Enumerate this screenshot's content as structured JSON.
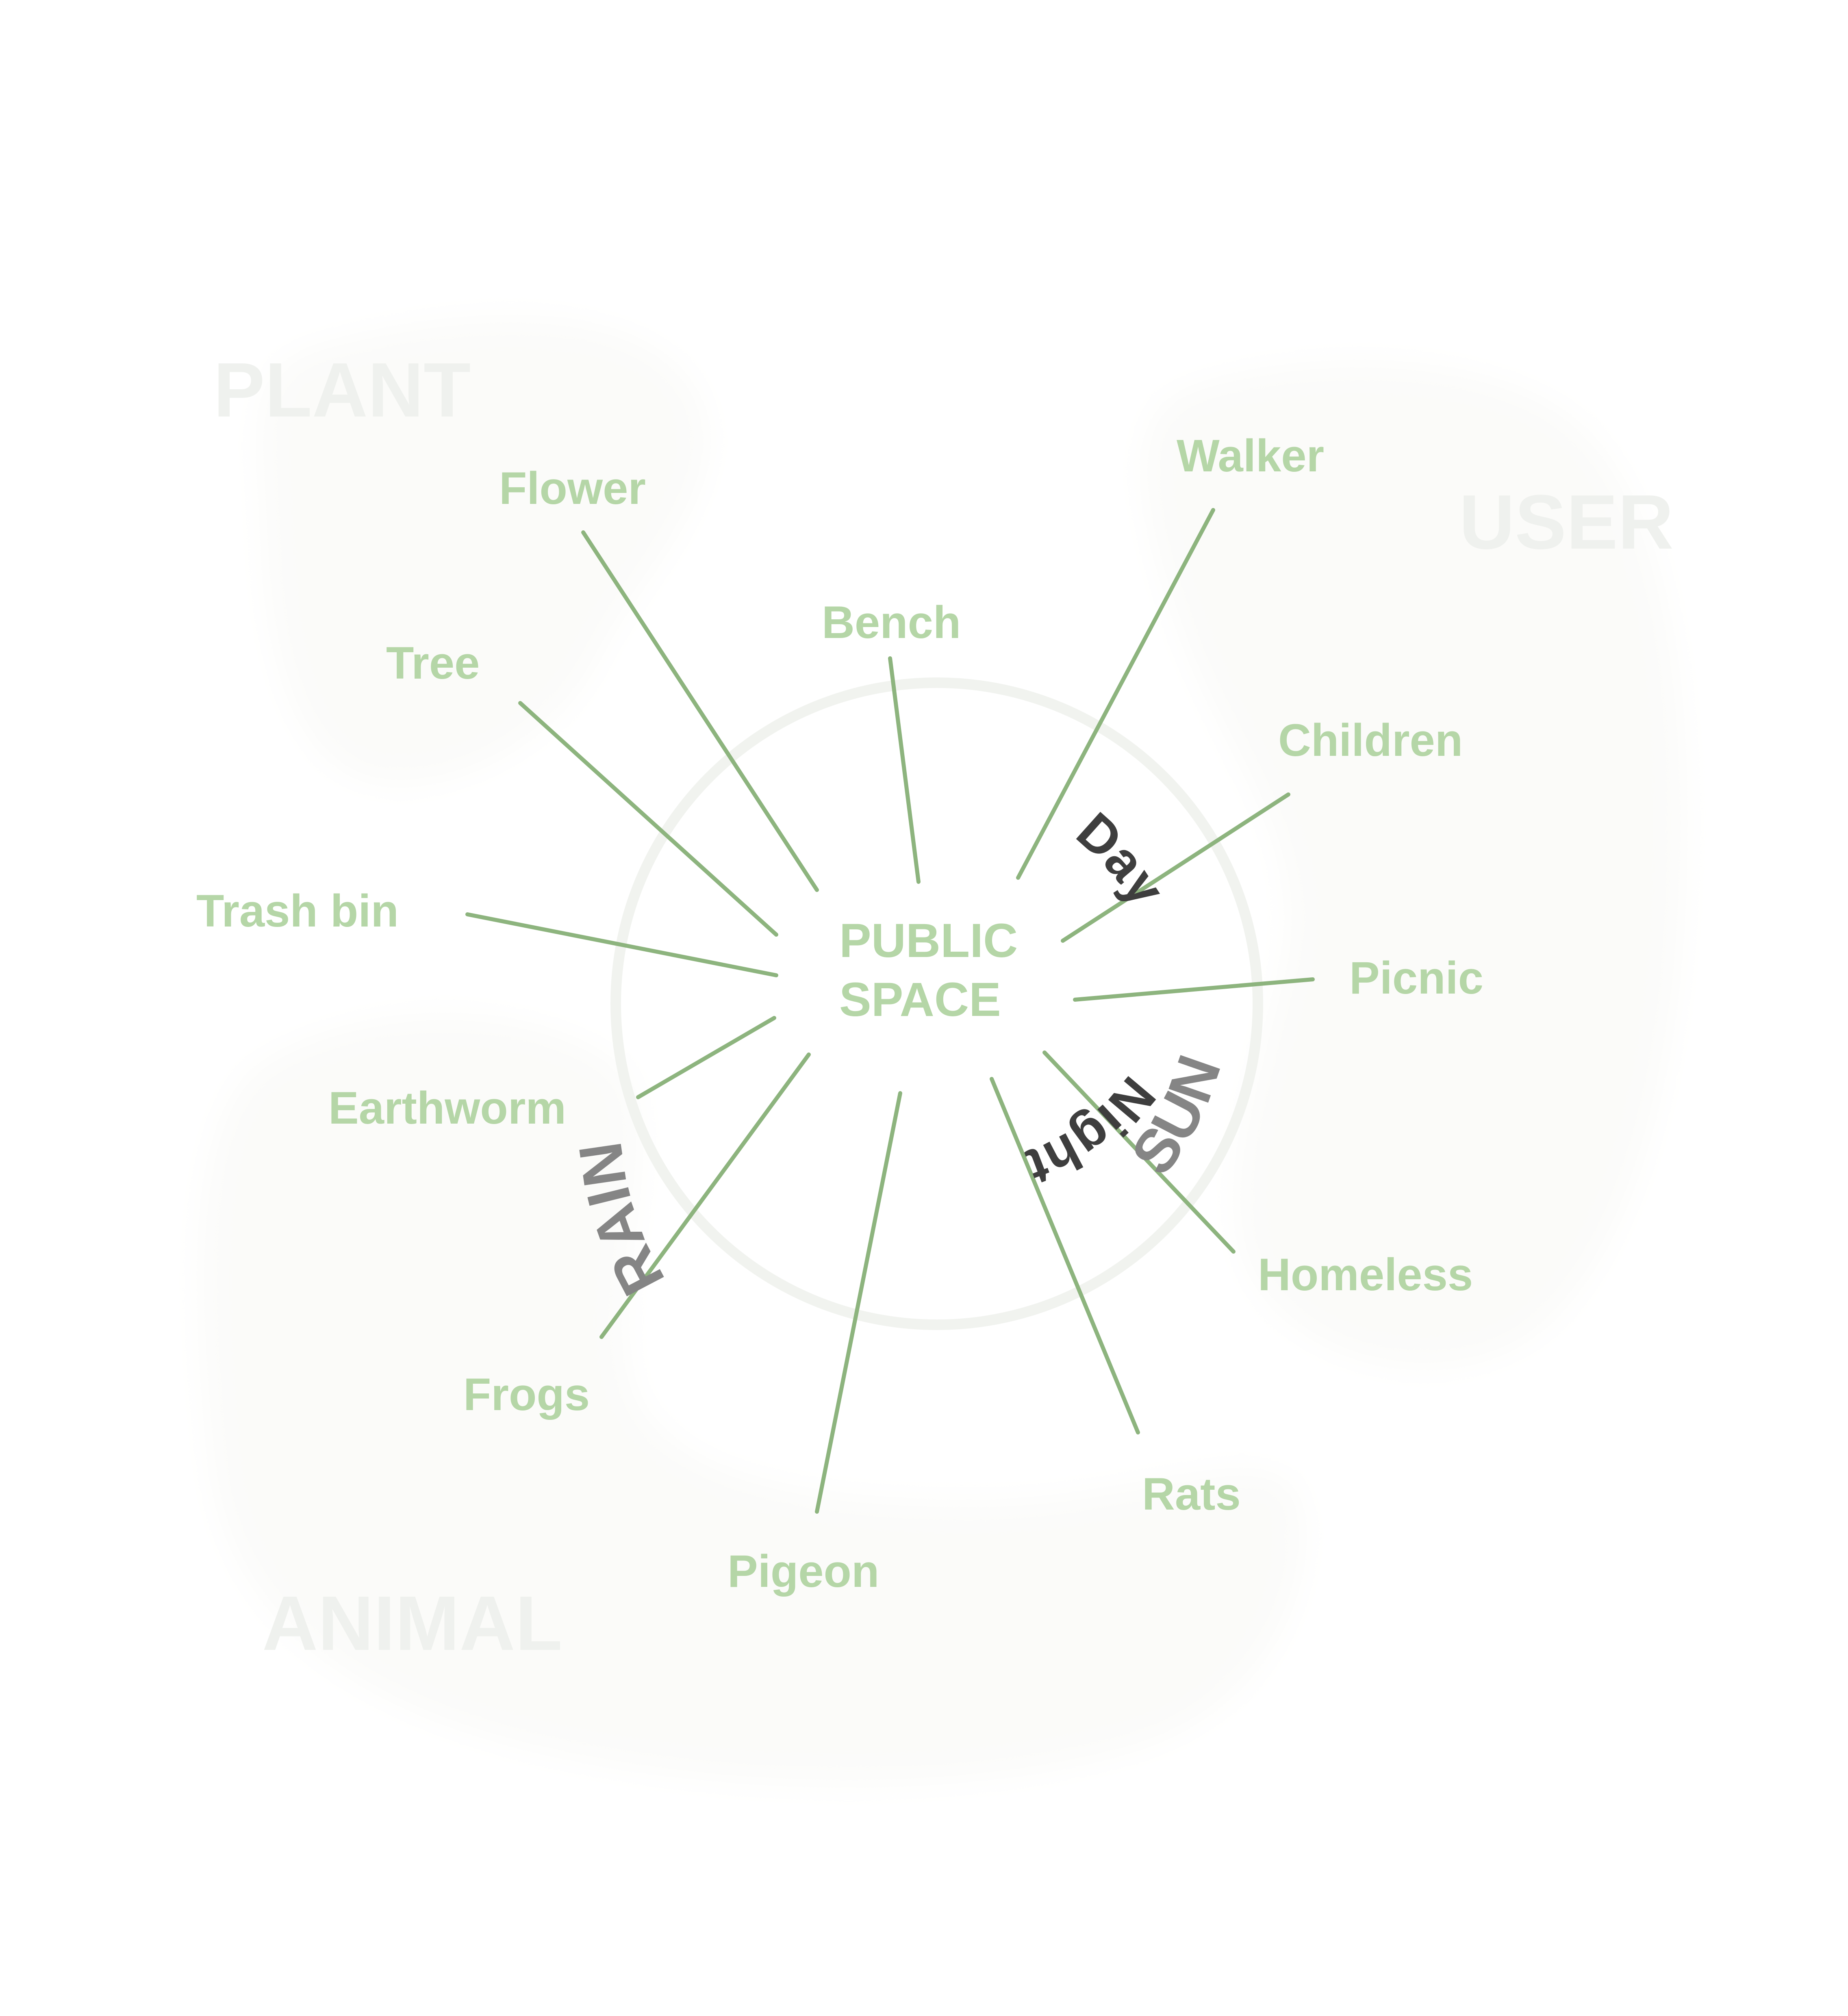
{
  "diagram": {
    "center": {
      "line1": "PUBLIC",
      "line2": "SPACE"
    },
    "groups": {
      "plant": "PLANT",
      "user": "USER",
      "animal": "ANIMAL"
    },
    "nodes": {
      "flower": "Flower",
      "tree": "Tree",
      "bench": "Bench",
      "walker": "Walker",
      "children": "Children",
      "picnic": "Picnic",
      "trash_bin": "Trash bin",
      "earthworm": "Earthworm",
      "frogs": "Frogs",
      "pigeon": "Pigeon",
      "rats": "Rats",
      "homeless": "Homeless"
    },
    "arcs": {
      "rain": "RAIN",
      "sun": "SUN",
      "day": "Day",
      "night": "Night"
    },
    "colors": {
      "node_text": "#b5d6a7",
      "connector": "#8db47e",
      "group_text": "#eff1ee",
      "group_blob": "#fbfbf9",
      "ring": "#f1f3ef",
      "arc_grey": "#858585",
      "arc_dark": "#3e3e3e"
    }
  }
}
